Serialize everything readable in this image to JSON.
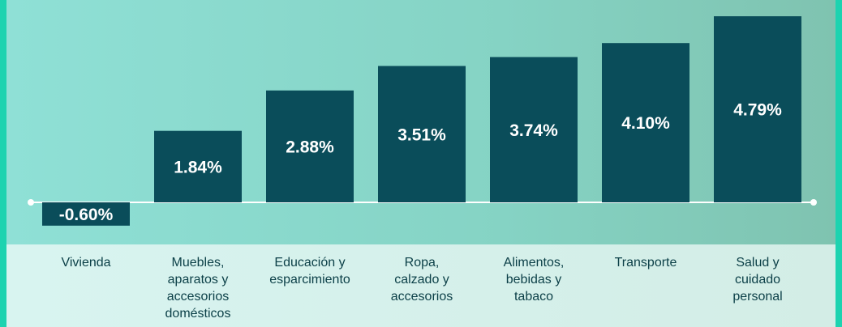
{
  "chart_data": {
    "type": "bar",
    "categories": [
      "Vivienda",
      "Muebles,\naparatos y\naccesorios\ndomésticos",
      "Educación y\nesparcimiento",
      "Ropa,\ncalzado y\naccesorios",
      "Alimentos,\nbebidas y\ntabaco",
      "Transporte",
      "Salud y\ncuidado\npersonal"
    ],
    "values": [
      -0.6,
      1.84,
      2.88,
      3.51,
      3.74,
      4.1,
      4.79
    ],
    "value_labels": [
      "-0.60%",
      "1.84%",
      "2.88%",
      "3.51%",
      "3.74%",
      "4.10%",
      "4.79%"
    ],
    "color": "#0a4d5a"
  }
}
